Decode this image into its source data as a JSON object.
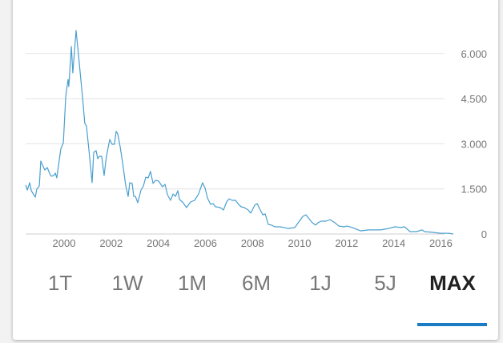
{
  "chart_data": {
    "type": "line",
    "xlabel": "",
    "ylabel": "",
    "xlim": [
      1998.37,
      2016.55
    ],
    "ylim": [
      0,
      6750
    ],
    "x_ticks": [
      "2000",
      "2002",
      "2004",
      "2006",
      "2008",
      "2010",
      "2012",
      "2014",
      "2016"
    ],
    "y_ticks": [
      {
        "value": 0,
        "label": "0"
      },
      {
        "value": 1500,
        "label": "1.500"
      },
      {
        "value": 3000,
        "label": "3.000"
      },
      {
        "value": 4500,
        "label": "4.500"
      },
      {
        "value": 6000,
        "label": "6.000"
      }
    ],
    "grid": true,
    "line_color": "#4a9fd0",
    "series": [
      {
        "x": [
          1998.37,
          1998.44,
          1998.54,
          1998.61,
          1998.78,
          1998.84,
          1998.95,
          1999.01,
          1999.18,
          1999.29,
          1999.39,
          1999.46,
          1999.56,
          1999.63,
          1999.69,
          1999.86,
          1999.97,
          2000.07,
          2000.17,
          2000.2,
          2000.31,
          2000.37,
          2000.51,
          2000.65,
          2000.78,
          2000.88,
          2000.95,
          2001.05,
          2001.19,
          2001.26,
          2001.36,
          2001.43,
          2001.5,
          2001.6,
          2001.7,
          2001.8,
          2001.94,
          2002.04,
          2002.14,
          2002.21,
          2002.28,
          2002.38,
          2002.48,
          2002.62,
          2002.72,
          2002.79,
          2002.89,
          2002.96,
          2003.03,
          2003.13,
          2003.27,
          2003.37,
          2003.47,
          2003.57,
          2003.67,
          2003.78,
          2003.88,
          2004.01,
          2004.18,
          2004.29,
          2004.39,
          2004.52,
          2004.63,
          2004.73,
          2004.83,
          2004.9,
          2005.03,
          2005.2,
          2005.37,
          2005.54,
          2005.71,
          2005.88,
          2005.99,
          2006.09,
          2006.22,
          2006.33,
          2006.43,
          2006.63,
          2006.77,
          2006.9,
          2007.01,
          2007.14,
          2007.28,
          2007.41,
          2007.52,
          2007.65,
          2007.82,
          2007.93,
          2008.1,
          2008.2,
          2008.33,
          2008.44,
          2008.54,
          2008.67,
          2008.81,
          2008.95,
          2009.18,
          2009.52,
          2009.8,
          2010.14,
          2010.27,
          2010.54,
          2010.68,
          2010.78,
          2010.92,
          2011.12,
          2011.29,
          2011.5,
          2011.67,
          2011.9,
          2012.01,
          2012.24,
          2012.59,
          2012.93,
          2013.44,
          2013.78,
          2014.05,
          2014.29,
          2014.46,
          2014.69,
          2014.97,
          2015.2,
          2015.31,
          2015.65,
          2015.99,
          2016.33,
          2016.53
        ],
        "values": [
          1625,
          1465,
          1705,
          1440,
          1225,
          1490,
          1600,
          2425,
          2130,
          2210,
          2000,
          1920,
          1945,
          2025,
          1865,
          2825,
          3035,
          4580,
          5140,
          4900,
          6235,
          5355,
          6765,
          5650,
          4580,
          3675,
          3595,
          2825,
          1705,
          2715,
          2770,
          2505,
          2585,
          2585,
          1945,
          2585,
          3145,
          2985,
          2985,
          3410,
          3330,
          2905,
          2400,
          1600,
          1250,
          1705,
          1680,
          1250,
          1250,
          1040,
          1465,
          1600,
          1890,
          1865,
          2080,
          1680,
          1785,
          1760,
          1570,
          1650,
          1305,
          1120,
          1330,
          1250,
          1440,
          1145,
          1065,
          880,
          1065,
          1120,
          1330,
          1705,
          1520,
          1200,
          985,
          1010,
          905,
          880,
          800,
          1065,
          1170,
          1120,
          1120,
          985,
          905,
          880,
          800,
          695,
          960,
          1010,
          800,
          640,
          665,
          320,
          295,
          240,
          240,
          185,
          215,
          585,
          640,
          375,
          295,
          375,
          425,
          425,
          480,
          375,
          265,
          240,
          265,
          215,
          105,
          135,
          135,
          185,
          240,
          215,
          240,
          80,
          80,
          135,
          80,
          55,
          25,
          25,
          0
        ]
      }
    ]
  },
  "range_tabs": {
    "items": [
      {
        "label": "1T"
      },
      {
        "label": "1W"
      },
      {
        "label": "1M"
      },
      {
        "label": "6M"
      },
      {
        "label": "1J"
      },
      {
        "label": "5J"
      },
      {
        "label": "MAX"
      }
    ],
    "active_index": 6,
    "accent_color": "#1a7dc4"
  }
}
